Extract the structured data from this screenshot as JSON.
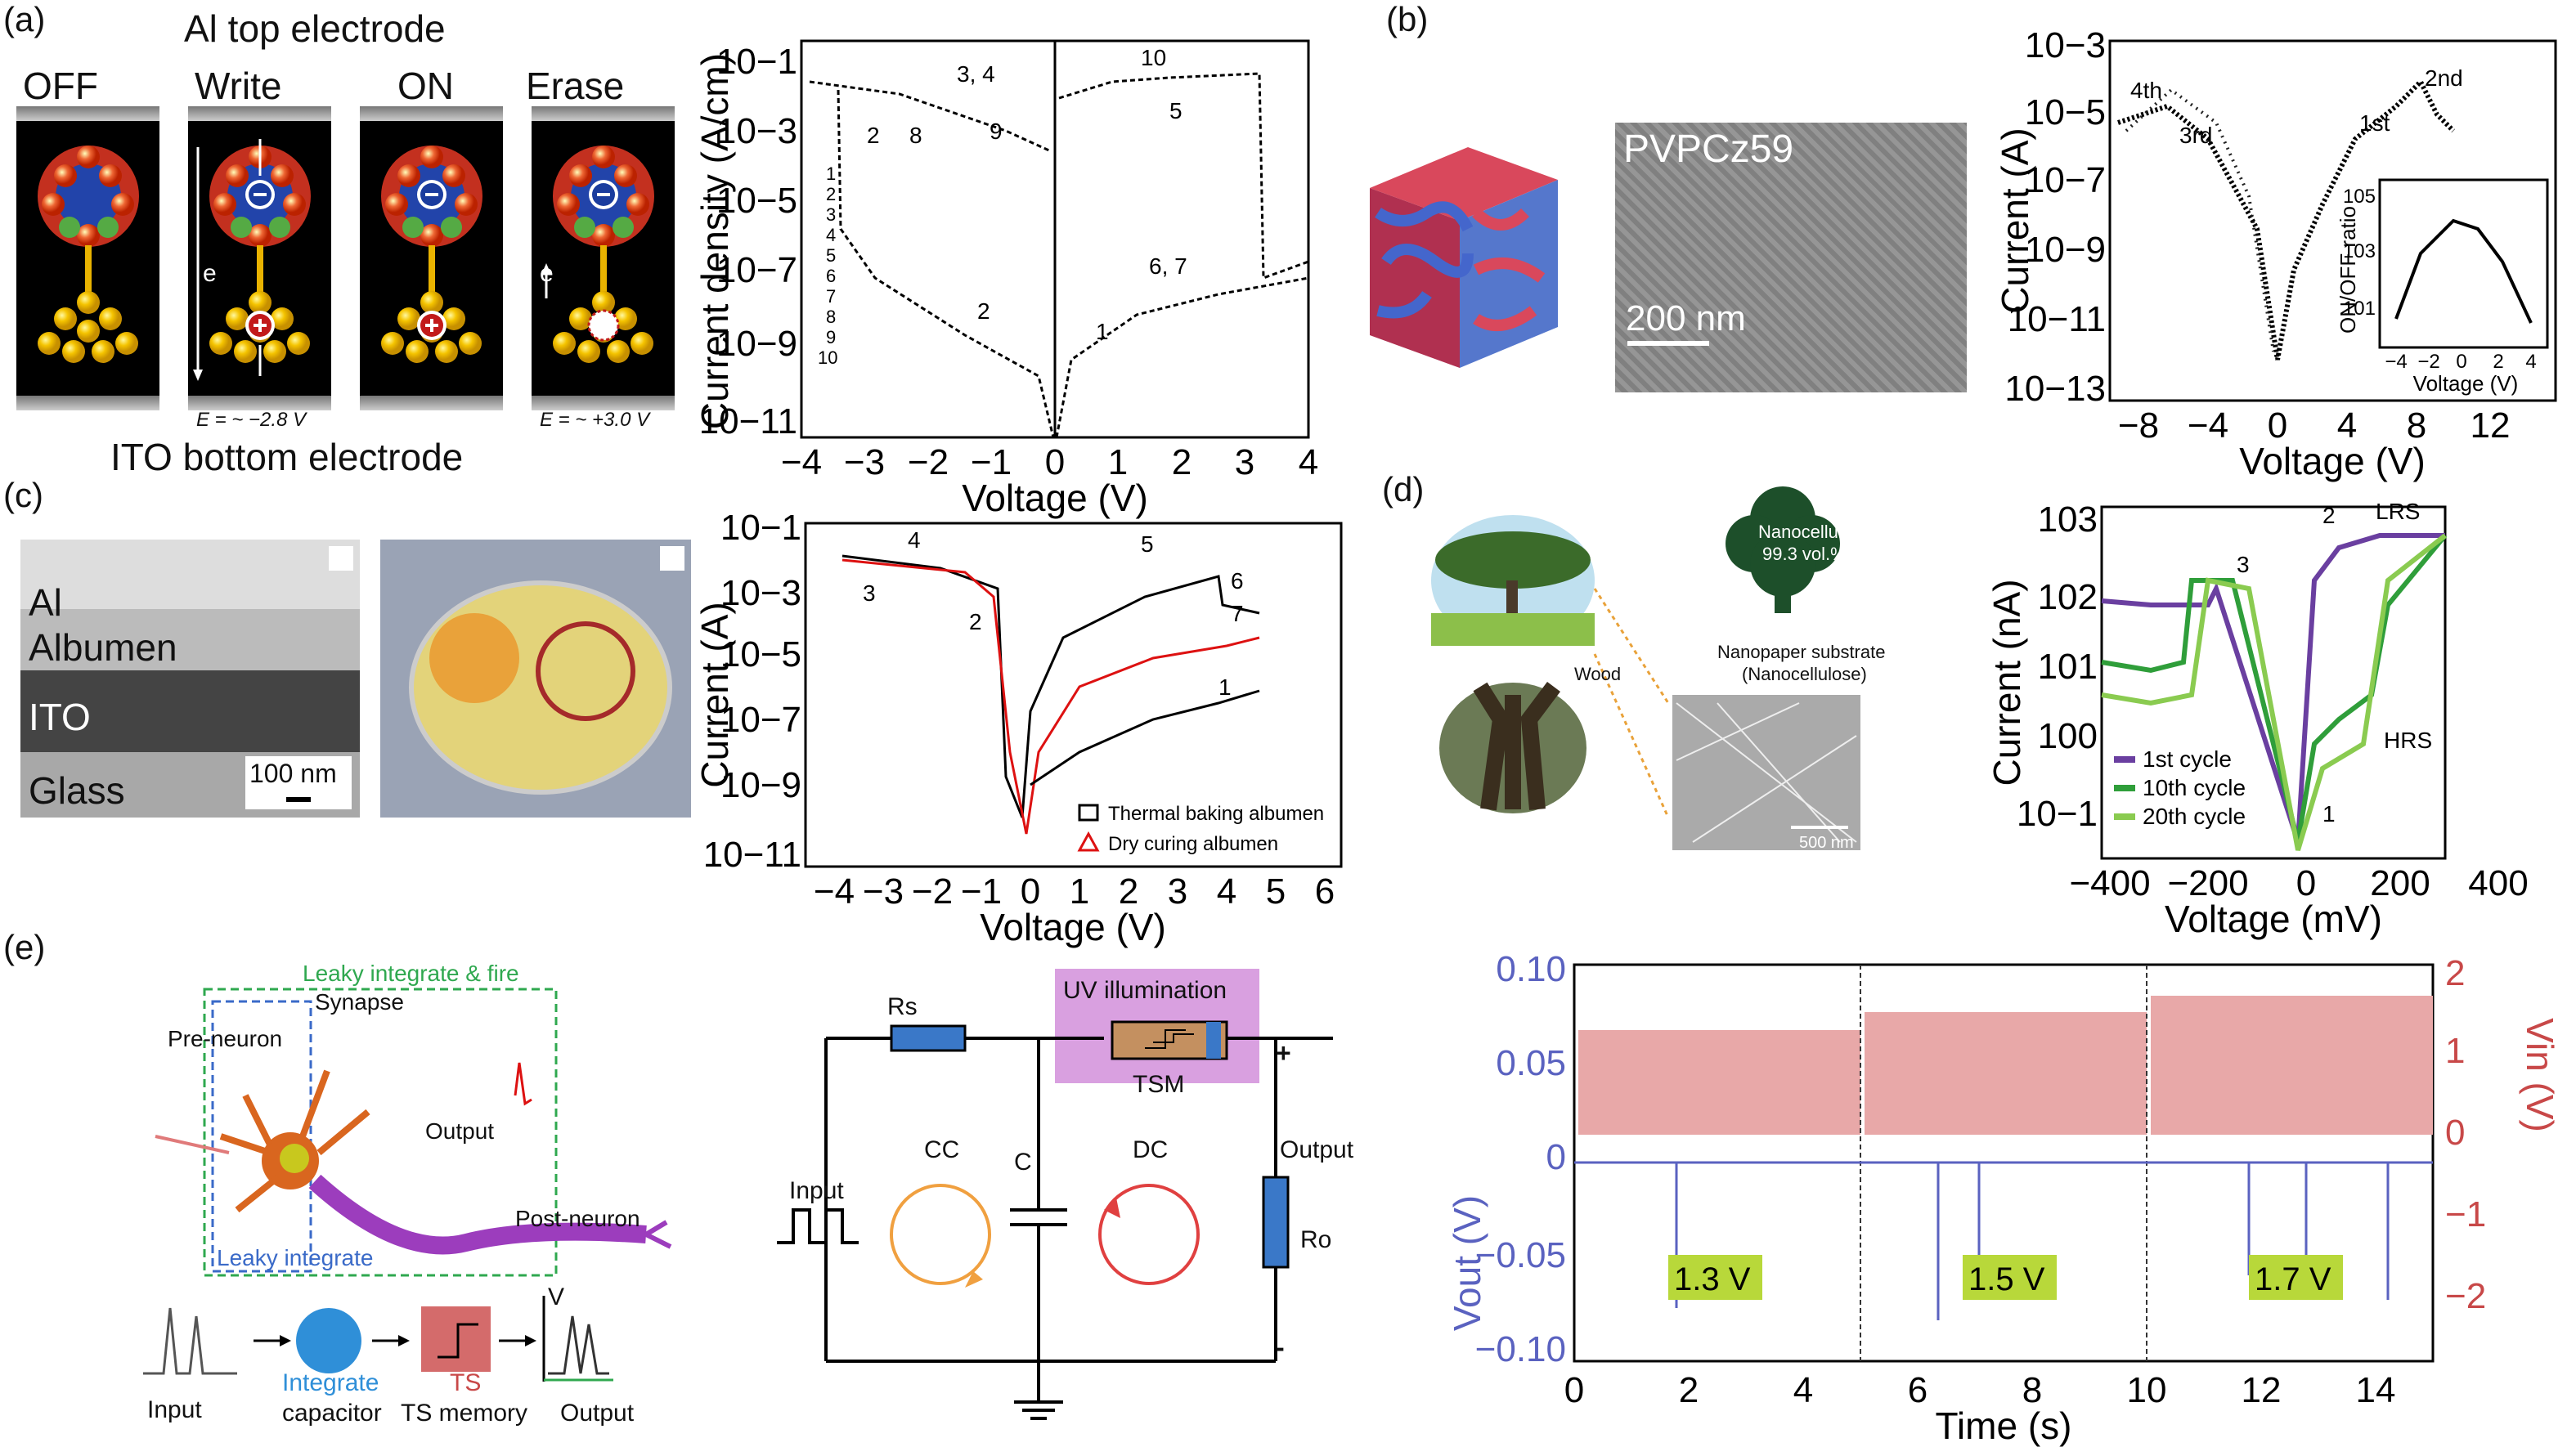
{
  "panels": {
    "a": {
      "label": "(a)",
      "top_electrode": "Al top electrode",
      "bottom_electrode": "ITO bottom electrode",
      "states": [
        "OFF",
        "Write",
        "ON",
        "Erase"
      ],
      "electron": "e",
      "field_write": "E = ~ −2.8 V",
      "field_erase": "E = ~ +3.0 V",
      "chart": {
        "type": "line",
        "xlabel": "Voltage (V)",
        "ylabel": "Current density (A/cm)",
        "xticks": [
          "−4",
          "−3",
          "−2",
          "−1",
          "0",
          "1",
          "2",
          "3",
          "4"
        ],
        "yticks": [
          "10−1",
          "10−3",
          "10−5",
          "10−7",
          "10−9",
          "10−11"
        ],
        "legend": [
          "1",
          "2",
          "3",
          "4",
          "5",
          "6",
          "7",
          "8",
          "9",
          "10"
        ],
        "annotations": [
          "3, 4",
          "10",
          "2",
          "8",
          "9",
          "5",
          "6, 7",
          "2",
          "1"
        ]
      }
    },
    "b": {
      "label": "(b)",
      "sem_label": "PVPCz59",
      "scale": "200 nm",
      "chart": {
        "type": "line",
        "xlabel": "Voltage (V)",
        "ylabel": "Current (A)",
        "xticks": [
          "−8",
          "−4",
          "0",
          "4",
          "8",
          "12"
        ],
        "yticks": [
          "10−3",
          "10−5",
          "10−7",
          "10−9",
          "10−11",
          "10−13"
        ],
        "annotations": [
          "4th",
          "3rd",
          "2nd",
          "1st"
        ],
        "inset": {
          "ylabel": "ON/OFF ratio",
          "xlabel": "Voltage (V)",
          "xticks": [
            "−4",
            "−2",
            "0",
            "2",
            "4"
          ],
          "yticks": [
            "105",
            "103",
            "101"
          ]
        }
      }
    },
    "c": {
      "label": "(c)",
      "layers": [
        "Al",
        "Albumen",
        "ITO",
        "Glass"
      ],
      "scale": "100 nm",
      "chart": {
        "type": "line",
        "xlabel": "Voltage (V)",
        "ylabel": "Current (A)",
        "xticks": [
          "−4",
          "−3",
          "−2",
          "−1",
          "0",
          "1",
          "2",
          "3",
          "4",
          "5",
          "6"
        ],
        "yticks": [
          "10−1",
          "10−3",
          "10−5",
          "10−7",
          "10−9",
          "10−11"
        ],
        "legend": [
          "Thermal baking albumen",
          "Dry curing albumen"
        ],
        "annotations": [
          "4",
          "5",
          "6",
          "7",
          "3",
          "2",
          "1"
        ]
      }
    },
    "d": {
      "label": "(d)",
      "nanocellulose": "Nanocellulose",
      "vol": "99.3 vol.%",
      "wood": "Wood",
      "substrate": "Nanopaper substrate",
      "substrate2": "(Nanocellulose)",
      "scale": "500 nm",
      "chart": {
        "type": "line",
        "xlabel": "Voltage (mV)",
        "ylabel": "Current (nA)",
        "xticks": [
          "−400",
          "−200",
          "0",
          "200",
          "400"
        ],
        "yticks": [
          "103",
          "102",
          "101",
          "100",
          "10−1"
        ],
        "legend": [
          "1st cycle",
          "10th cycle",
          "20th cycle"
        ],
        "annotations": [
          "LRS",
          "HRS",
          "3",
          "2",
          "1"
        ]
      }
    },
    "e": {
      "label": "(e)",
      "lif": "Leaky integrate & fire",
      "synapse": "Synapse",
      "pre_neuron": "Pre-neuron",
      "output": "Output",
      "post_neuron": "Post-neuron",
      "leaky_integrate": "Leaky integrate",
      "flow": [
        "Input",
        "Integrate",
        "capacitor",
        "TS",
        "TS memory",
        "Output",
        "V"
      ],
      "circuit": {
        "rs": "Rs",
        "uv": "UV illumination",
        "tsm": "TSM",
        "plus": "+",
        "minus": "-",
        "input": "Input",
        "cc": "CC",
        "c": "C",
        "dc": "DC",
        "output": "Output",
        "ro": "Ro"
      },
      "chart": {
        "type": "line",
        "xlabel": "Time (s)",
        "ylabel_left": "Vout (V)",
        "ylabel_right": "Vin (V)",
        "xticks": [
          "0",
          "2",
          "4",
          "6",
          "8",
          "10",
          "12",
          "14"
        ],
        "yticks_left": [
          "0.10",
          "0.05",
          "0",
          "−0.05",
          "−0.10"
        ],
        "yticks_right": [
          "2",
          "1",
          "0",
          "−1",
          "−2"
        ],
        "boxes": [
          "1.3 V",
          "1.5 V",
          "1.7 V"
        ]
      }
    }
  }
}
